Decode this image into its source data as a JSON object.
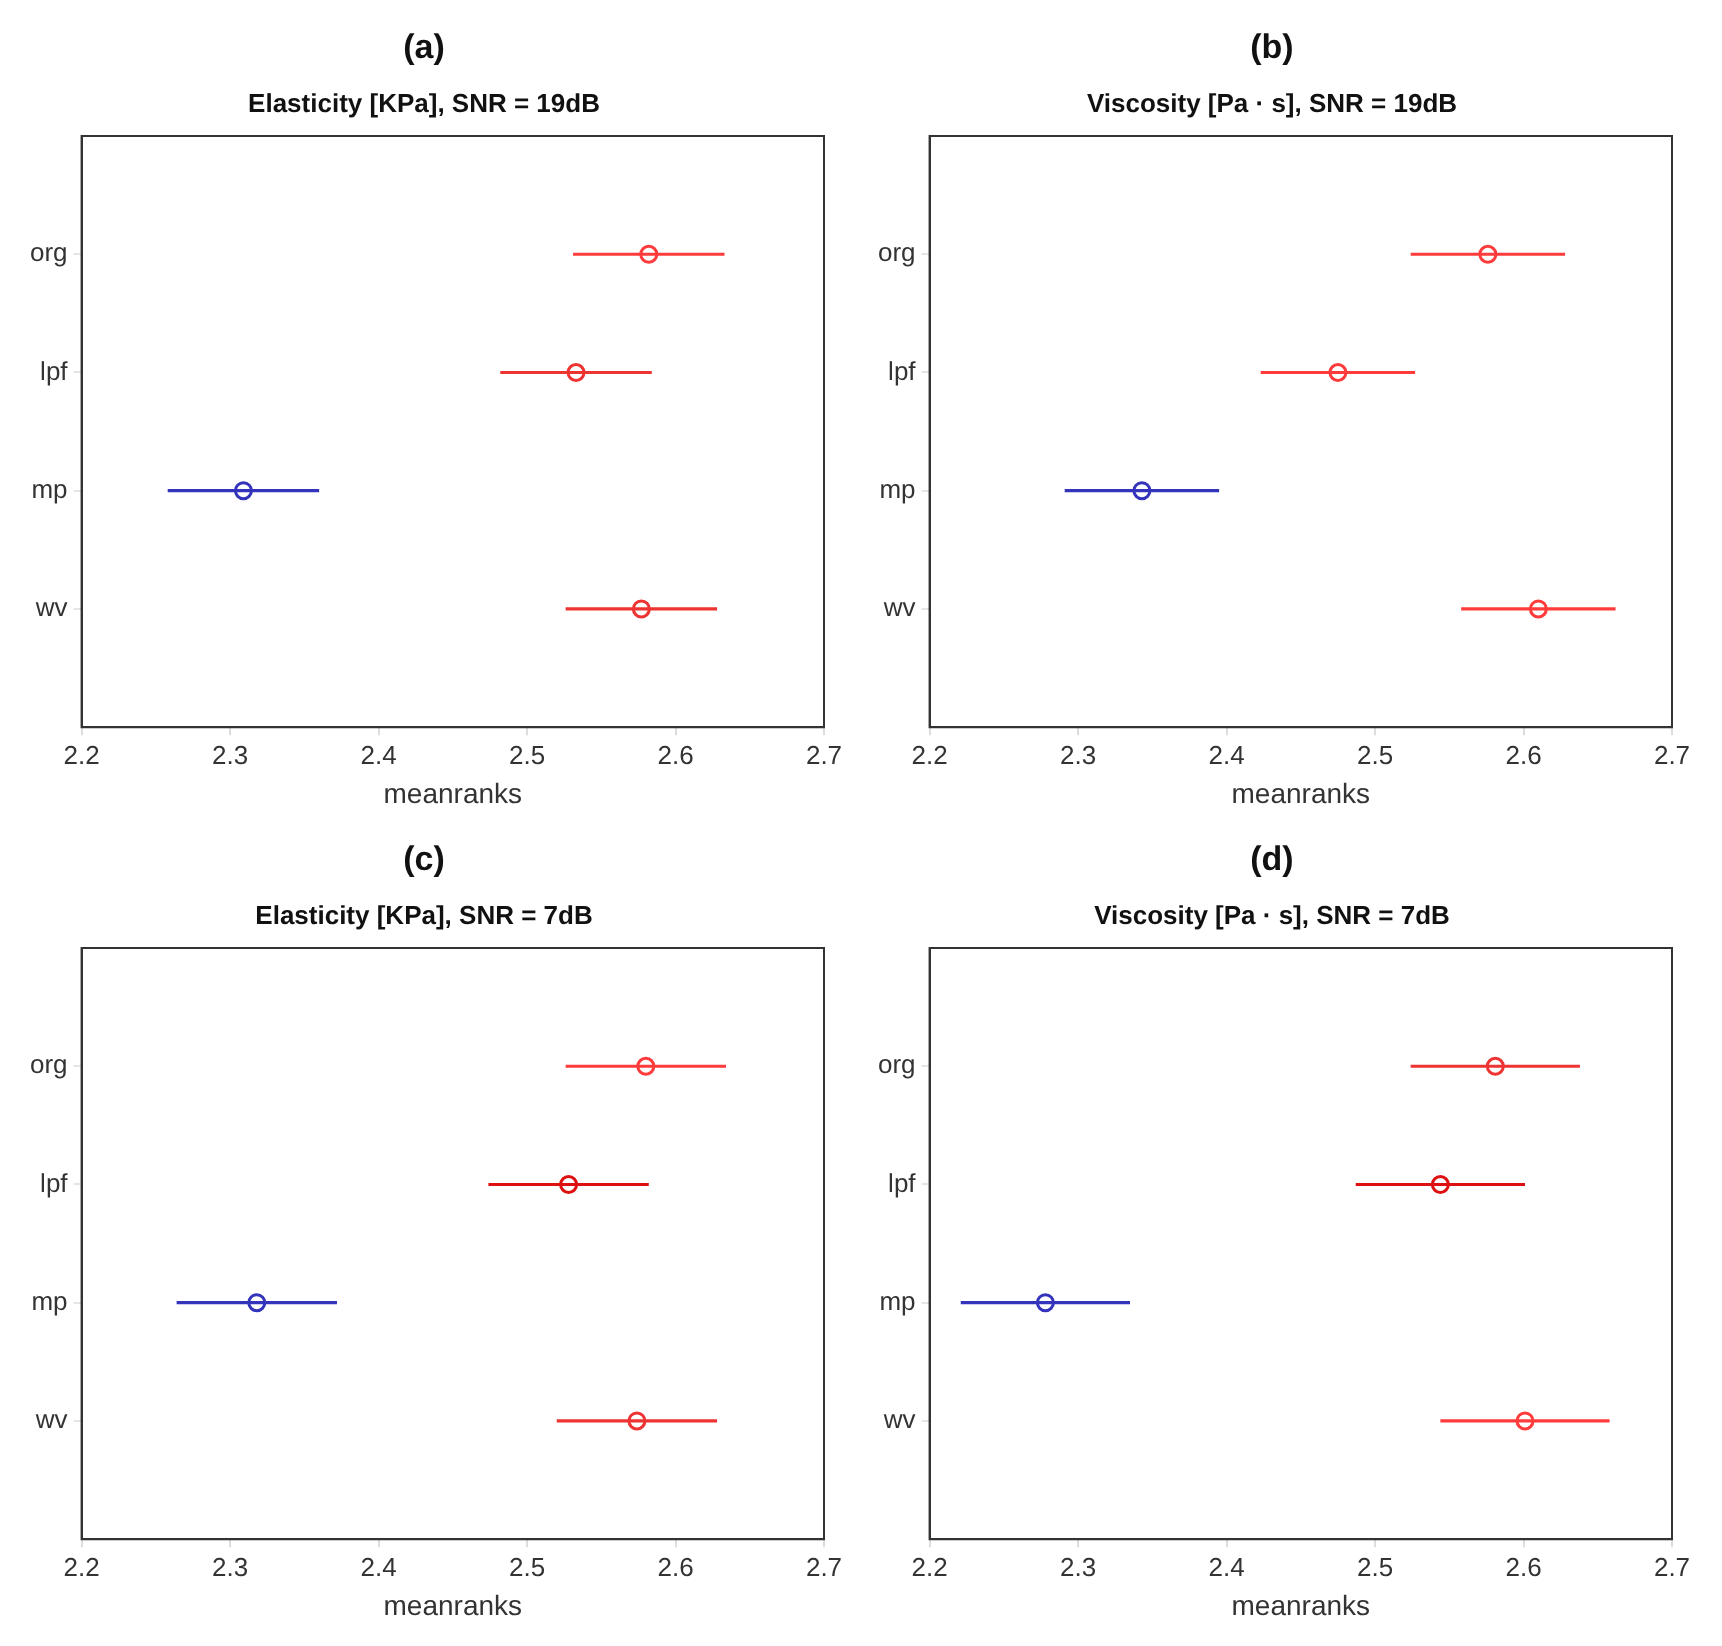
{
  "chart_data": [
    {
      "type": "scatter",
      "orientation": "horizontal",
      "title": "(a)",
      "subtitle": "Elasticity [KPa], SNR = 19dB",
      "xlabel": "meanranks",
      "categories": [
        "org",
        "lpf",
        "mp",
        "wv"
      ],
      "values": [
        2.582,
        2.533,
        2.309,
        2.577
      ],
      "errors": [
        0.051,
        0.051,
        0.051,
        0.051
      ],
      "colors": [
        "#ff3b3b",
        "#ee3333",
        "#3333bb",
        "#ee3333"
      ],
      "marker": "circle",
      "xlim": [
        2.2,
        2.7
      ],
      "xticks": [
        2.2,
        2.3,
        2.4,
        2.5,
        2.6,
        2.7
      ],
      "grid": false
    },
    {
      "type": "scatter",
      "orientation": "horizontal",
      "title": "(b)",
      "subtitle": "Viscosity [Pa · s], SNR = 19dB",
      "xlabel": "meanranks",
      "categories": [
        "org",
        "lpf",
        "mp",
        "wv"
      ],
      "values": [
        2.576,
        2.475,
        2.343,
        2.61
      ],
      "errors": [
        0.052,
        0.052,
        0.052,
        0.052
      ],
      "colors": [
        "#ff3b3b",
        "#ff3b3b",
        "#3333bb",
        "#ff3b3b"
      ],
      "marker": "circle",
      "xlim": [
        2.2,
        2.7
      ],
      "xticks": [
        2.2,
        2.3,
        2.4,
        2.5,
        2.6,
        2.7
      ],
      "grid": false
    },
    {
      "type": "scatter",
      "orientation": "horizontal",
      "title": "(c)",
      "subtitle": "Elasticity [KPa], SNR = 7dB",
      "xlabel": "meanranks",
      "categories": [
        "org",
        "lpf",
        "mp",
        "wv"
      ],
      "values": [
        2.58,
        2.528,
        2.318,
        2.574
      ],
      "errors": [
        0.054,
        0.054,
        0.054,
        0.054
      ],
      "colors": [
        "#ff3b3b",
        "#dd1111",
        "#3333bb",
        "#ee3333"
      ],
      "marker": "circle",
      "xlim": [
        2.2,
        2.7
      ],
      "xticks": [
        2.2,
        2.3,
        2.4,
        2.5,
        2.6,
        2.7
      ],
      "grid": false
    },
    {
      "type": "scatter",
      "orientation": "horizontal",
      "title": "(d)",
      "subtitle": "Viscosity [Pa · s], SNR = 7dB",
      "xlabel": "meanranks",
      "categories": [
        "org",
        "lpf",
        "mp",
        "wv"
      ],
      "values": [
        2.581,
        2.544,
        2.278,
        2.601
      ],
      "errors": [
        0.057,
        0.057,
        0.057,
        0.057
      ],
      "colors": [
        "#ee3333",
        "#dd1111",
        "#3333bb",
        "#ff3b3b"
      ],
      "marker": "circle",
      "xlim": [
        2.2,
        2.7
      ],
      "xticks": [
        2.2,
        2.3,
        2.4,
        2.5,
        2.6,
        2.7
      ],
      "grid": false
    }
  ]
}
